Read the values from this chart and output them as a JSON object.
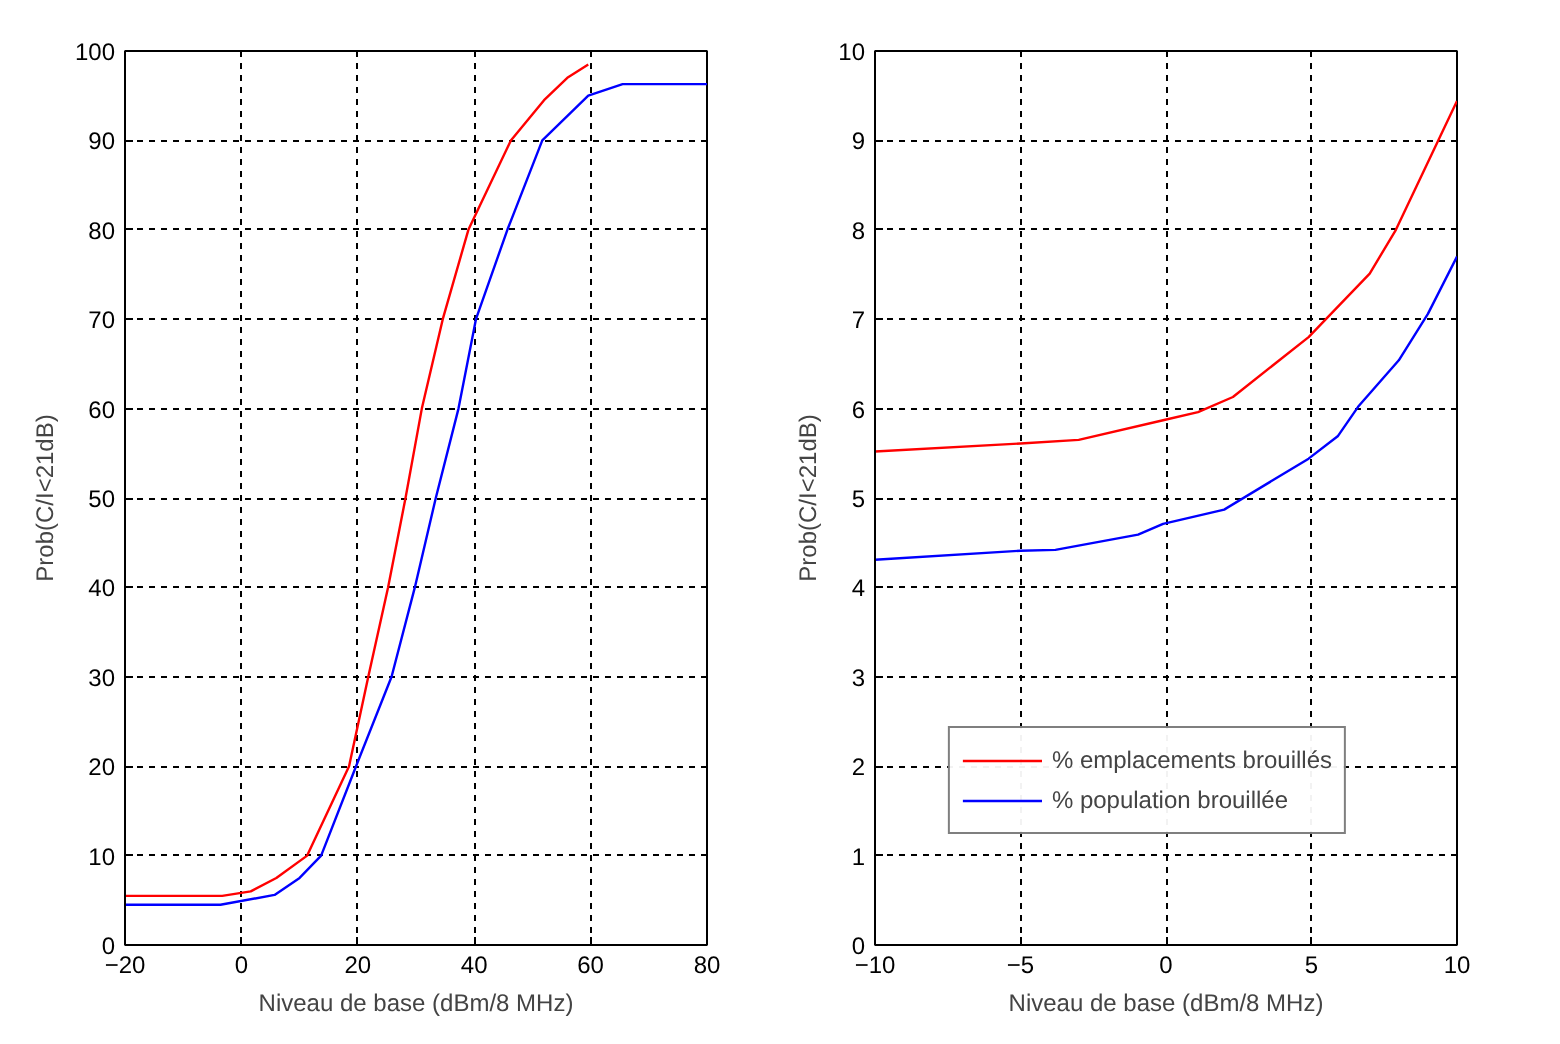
{
  "chart_data": [
    {
      "type": "line",
      "xlabel": "Niveau de base (dBm/8 MHz)",
      "ylabel": "Prob(C/I<21dB)",
      "xlim": [
        -20,
        80
      ],
      "ylim": [
        0,
        100
      ],
      "xticks": [
        -20,
        0,
        20,
        40,
        60,
        80
      ],
      "yticks": [
        0,
        10,
        20,
        30,
        40,
        50,
        60,
        70,
        80,
        90,
        100
      ],
      "grid": true,
      "line_style": "solid",
      "legend": false,
      "series": [
        {
          "color": "#ff0000",
          "x": [
            -20,
            -3.3,
            1.6,
            6,
            11.3,
            18.5,
            21.8,
            25.2,
            28.2,
            31,
            34.6,
            39,
            46.3,
            52,
            56,
            59.6
          ],
          "values": [
            5.5,
            5.5,
            6,
            7.5,
            10,
            20,
            30,
            40,
            50,
            60,
            70,
            80,
            90,
            94.5,
            97,
            98.5
          ]
        },
        {
          "color": "#0000ff",
          "x": [
            -20,
            -3.6,
            5.7,
            10,
            13.7,
            19.7,
            25.8,
            29.8,
            33.4,
            37.3,
            40.3,
            45.7,
            51.7,
            59.6,
            65.5,
            80
          ],
          "values": [
            4.5,
            4.5,
            5.6,
            7.5,
            10,
            20,
            30,
            40,
            50,
            60,
            70,
            80,
            90,
            95,
            96.3,
            96.3
          ]
        }
      ]
    },
    {
      "type": "line",
      "xlabel": "Niveau de base (dBm/8 MHz)",
      "ylabel": "Prob(C/I<21dB)",
      "xlim": [
        -10,
        10
      ],
      "ylim": [
        0,
        10
      ],
      "xticks": [
        -10,
        -5,
        0,
        5,
        10
      ],
      "yticks": [
        0,
        1,
        2,
        3,
        4,
        5,
        6,
        7,
        8,
        9,
        10
      ],
      "grid": true,
      "line_style": "solid",
      "legend": "bottom right",
      "series": [
        {
          "name": "% emplacements brouillés",
          "color": "#ff0000",
          "x": [
            -10,
            -5,
            -3,
            -0.1,
            1.1,
            2.3,
            4.9,
            7.0,
            7.9,
            9.4,
            10
          ],
          "values": [
            5.52,
            5.61,
            5.65,
            5.87,
            5.96,
            6.13,
            6.8,
            7.51,
            8.0,
            9.03,
            9.44
          ]
        },
        {
          "name": "% population brouillée",
          "color": "#0000ff",
          "x": [
            -10,
            -5,
            -3.8,
            -0.96,
            -0.1,
            2.0,
            4.9,
            5.9,
            6.6,
            8.0,
            9.0,
            10
          ],
          "values": [
            4.31,
            4.41,
            4.42,
            4.59,
            4.71,
            4.87,
            5.44,
            5.69,
            6.02,
            6.54,
            7.06,
            7.7
          ]
        }
      ]
    }
  ]
}
